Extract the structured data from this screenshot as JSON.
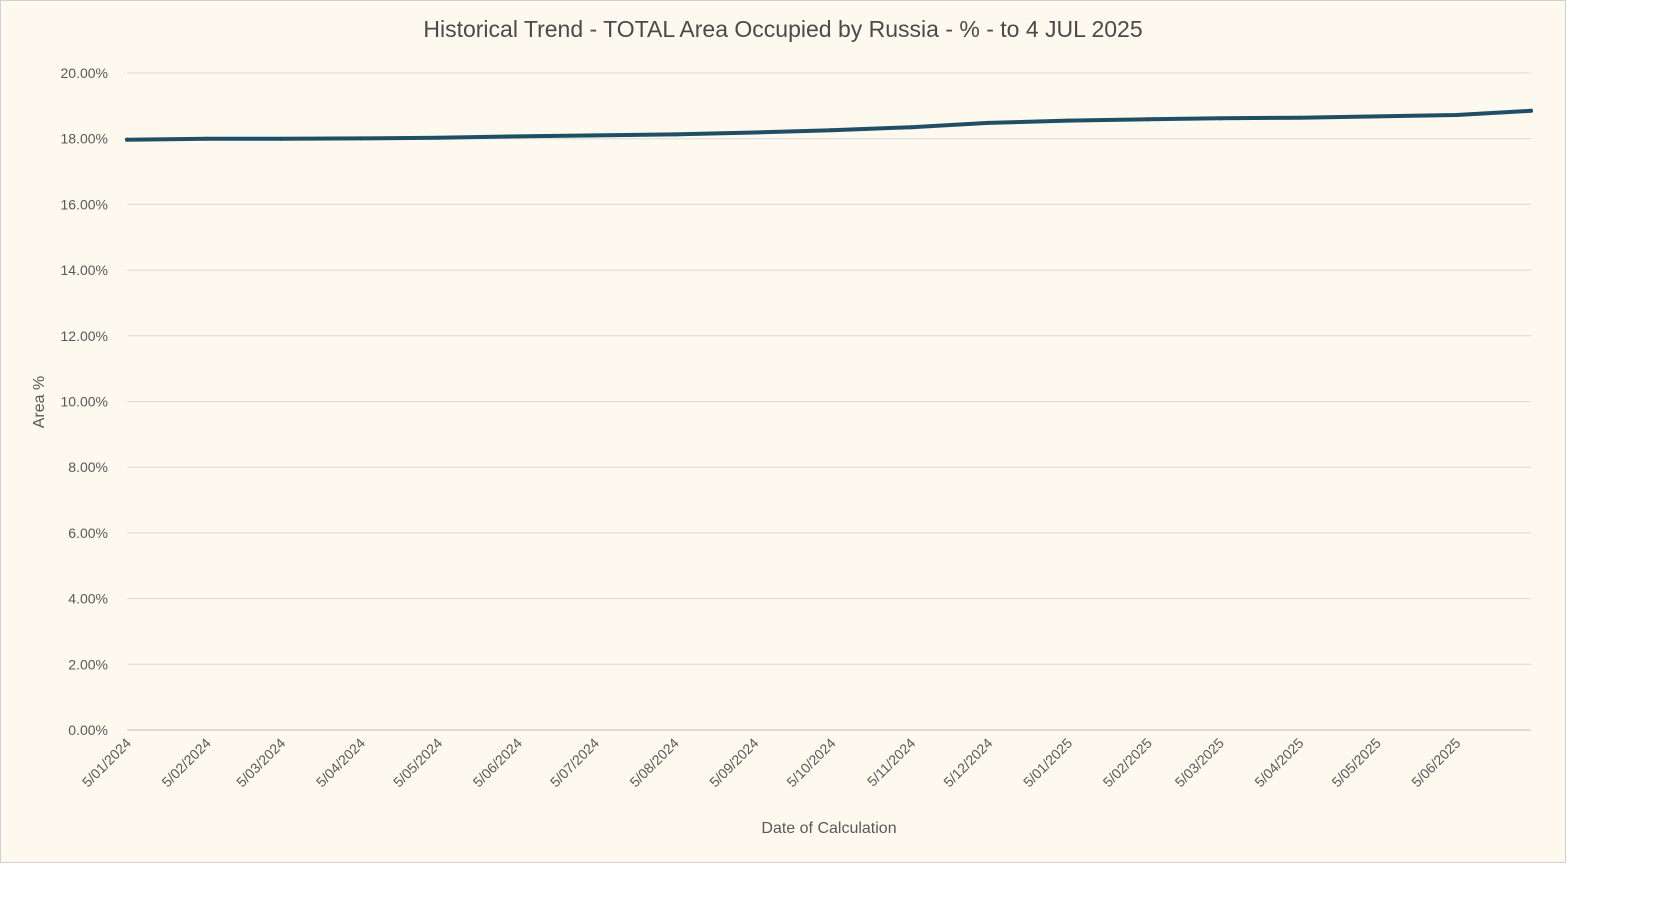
{
  "chart_data": {
    "type": "line",
    "title": "Historical Trend - TOTAL Area Occupied by Russia - % - to 4 JUL 2025",
    "xlabel": "Date of Calculation",
    "ylabel": "Area %",
    "ylim": [
      0,
      20
    ],
    "y_ticks": [
      "0.00%",
      "2.00%",
      "4.00%",
      "6.00%",
      "8.00%",
      "10.00%",
      "12.00%",
      "14.00%",
      "16.00%",
      "18.00%",
      "20.00%"
    ],
    "x_ticks": [
      "5/01/2024",
      "5/02/2024",
      "5/03/2024",
      "5/04/2024",
      "5/05/2024",
      "5/06/2024",
      "5/07/2024",
      "5/08/2024",
      "5/09/2024",
      "5/10/2024",
      "5/11/2024",
      "5/12/2024",
      "5/01/2025",
      "5/02/2025",
      "5/03/2025",
      "5/04/2025",
      "5/05/2025",
      "5/06/2025"
    ],
    "grid": true,
    "line_color": "#1f4e66",
    "series": [
      {
        "x": [
          "5/01/2024",
          "5/02/2024",
          "5/03/2024",
          "5/04/2024",
          "5/05/2024",
          "5/06/2024",
          "5/07/2024",
          "5/08/2024",
          "5/09/2024",
          "5/10/2024",
          "5/11/2024",
          "5/12/2024",
          "5/01/2025",
          "5/02/2025",
          "5/03/2025",
          "5/04/2025",
          "5/05/2025",
          "5/06/2025",
          "4/07/2025"
        ],
        "values": [
          17.97,
          18.0,
          18.0,
          18.01,
          18.03,
          18.07,
          18.1,
          18.13,
          18.19,
          18.26,
          18.35,
          18.48,
          18.55,
          18.59,
          18.62,
          18.64,
          18.68,
          18.72,
          18.85
        ]
      }
    ]
  }
}
